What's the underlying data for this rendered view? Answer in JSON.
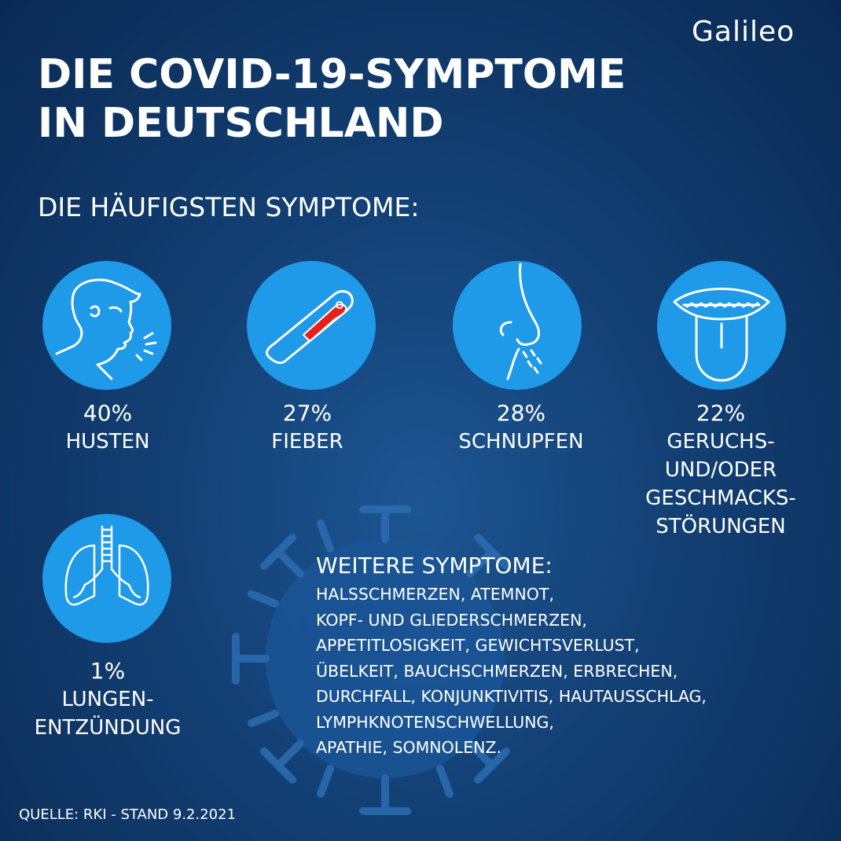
{
  "brand": "Galileo",
  "title_lines": [
    "DIE COVID-19-SYMPTOME",
    "IN DEUTSCHLAND"
  ],
  "subtitle": "DIE HÄUFIGSTEN SYMPTOME:",
  "colors": {
    "icon_circle": "#1e9ae8",
    "background": "#123f73",
    "thermometer_fill": "#e8201c"
  },
  "symptoms": [
    {
      "icon": "coughing-person-icon",
      "percent": "40%",
      "label_lines": [
        "HUSTEN"
      ]
    },
    {
      "icon": "thermometer-icon",
      "percent": "27%",
      "label_lines": [
        "FIEBER"
      ]
    },
    {
      "icon": "sneezing-nose-icon",
      "percent": "28%",
      "label_lines": [
        "SCHNUPFEN"
      ]
    },
    {
      "icon": "open-mouth-tongue-icon",
      "percent": "22%",
      "label_lines": [
        "GERUCHS-",
        "UND/ODER",
        "GESCHMACKS-",
        "STÖRUNGEN"
      ]
    },
    {
      "icon": "lungs-icon",
      "percent": "1%",
      "label_lines": [
        "LUNGEN-",
        "ENTZÜNDUNG"
      ]
    }
  ],
  "more": {
    "title": "WEITERE SYMPTOME:",
    "lines": [
      "HALSSCHMERZEN, ATEMNOT,",
      "KOPF- UND GLIEDERSCHMERZEN,",
      "APPETITLOSIGKEIT, GEWICHTSVERLUST,",
      "ÜBELKEIT, BAUCHSCHMERZEN, ERBRECHEN,",
      "DURCHFALL, KONJUNKTIVITIS, HAUTAUSSCHLAG,",
      "LYMPHKNOTENSCHWELLUNG,",
      "APATHIE, SOMNOLENZ."
    ]
  },
  "source": "QUELLE: RKI - STAND 9.2.2021"
}
